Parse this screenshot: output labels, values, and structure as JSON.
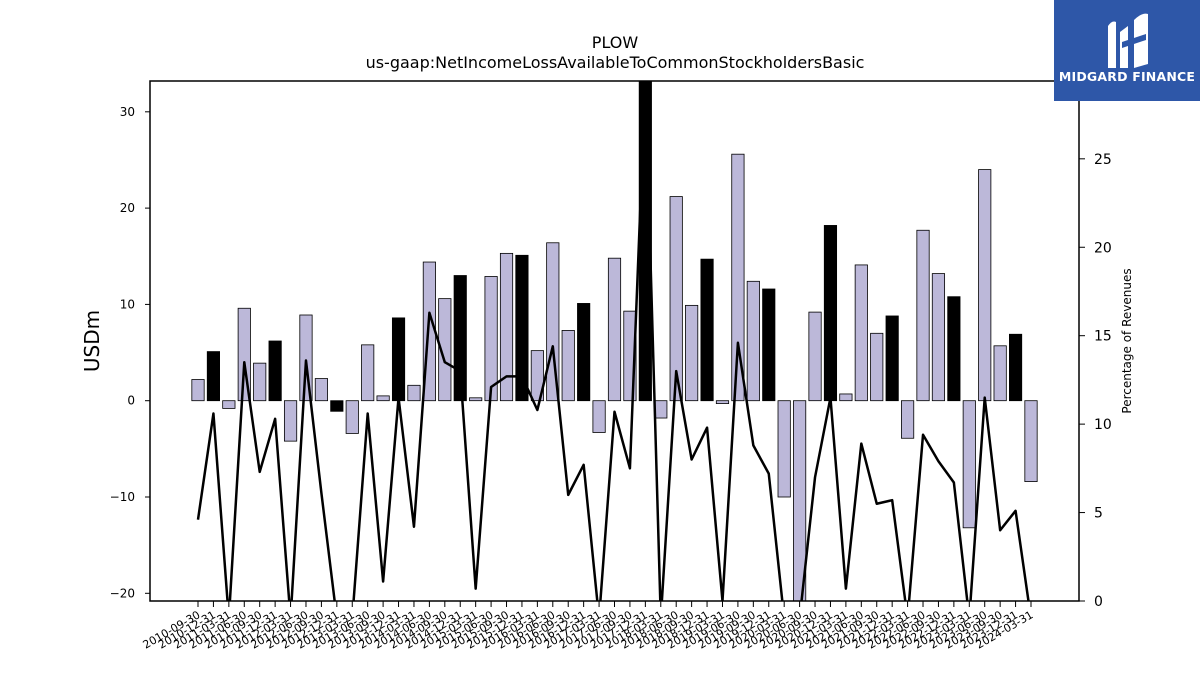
{
  "chart_data": {
    "type": "bar",
    "title": "PLOW",
    "subtitle": "us-gaap:NetIncomeLossAvailableToCommonStockholdersBasic",
    "ylabel": "USDm",
    "y2label": "Percentage of Revenues",
    "ylim": [
      -20.8,
      33.2
    ],
    "y2lim": [
      0,
      29.4
    ],
    "yticks": [
      -20,
      -10,
      0,
      10,
      20,
      30
    ],
    "y2ticks": [
      0,
      5,
      10,
      15,
      20,
      25
    ],
    "categories": [
      "2010-09-30",
      "2010-12-31",
      "2011-03-31",
      "2011-06-30",
      "2011-09-30",
      "2011-12-31",
      "2012-03-31",
      "2012-06-30",
      "2012-09-30",
      "2012-12-31",
      "2013-03-31",
      "2013-06-30",
      "2013-09-30",
      "2013-12-31",
      "2014-03-31",
      "2014-06-30",
      "2014-09-30",
      "2014-12-31",
      "2015-03-31",
      "2015-06-30",
      "2015-09-30",
      "2015-12-31",
      "2016-03-31",
      "2016-06-30",
      "2016-09-30",
      "2016-12-31",
      "2017-03-31",
      "2017-06-30",
      "2017-09-30",
      "2017-12-31",
      "2018-03-31",
      "2018-06-30",
      "2018-09-30",
      "2018-12-31",
      "2019-03-31",
      "2019-06-30",
      "2019-09-30",
      "2019-12-31",
      "2020-03-31",
      "2020-06-30",
      "2020-09-30",
      "2020-12-31",
      "2021-03-31",
      "2021-06-30",
      "2021-09-30",
      "2021-12-31",
      "2022-03-31",
      "2022-06-30",
      "2022-09-30",
      "2022-12-31",
      "2023-03-31",
      "2023-06-30",
      "2023-09-30",
      "2023-12-31",
      "2024-03-31"
    ],
    "tick_labels_shown": [
      "2010-09-30",
      "2010-12-31",
      "2011-03-31",
      "2011-06-30",
      "2011-09-30",
      "2011-12-31",
      "2012-03-31",
      "2012-06-30",
      "2012-09-30",
      "2012-12-31",
      "2013-03-31",
      "2013-06-30",
      "2013-09-30",
      "2013-12-31",
      "2014-03-31",
      "2014-06-30",
      "2014-09-30",
      "2014-12-31",
      "2015-03-31",
      "2015-06-30",
      "2015-09-30",
      "2015-12-31",
      "2016-03-31",
      "2016-06-30",
      "2016-09-30",
      "2016-12-31",
      "2017-03-31",
      "2017-06-30",
      "2017-09-30",
      "2017-12-31",
      "2018-03-31",
      "2018-06-30",
      "2018-09-30",
      "2018-12-31",
      "2019-03-31",
      "2019-06-30",
      "2019-09-30",
      "2019-12-31",
      "2020-03-31",
      "2020-06-30",
      "2020-09-30",
      "2020-12-31",
      "2021-03-31",
      "2021-06-30",
      "2021-09-30",
      "2021-12-31",
      "2022-03-31",
      "2022-06-30",
      "2022-09-30",
      "2022-12-31",
      "2023-03-31",
      "2023-06-30",
      "2023-09-30",
      "2023-12-31",
      "2024-03-31"
    ],
    "series": [
      {
        "kind": "bar",
        "axis": "left",
        "values": [
          2.2,
          5.1,
          -0.8,
          9.6,
          3.9,
          6.2,
          -4.2,
          8.9,
          2.3,
          -1.1,
          -3.4,
          5.8,
          0.5,
          8.6,
          1.6,
          14.4,
          10.6,
          13.0,
          0.3,
          12.9,
          15.3,
          15.1,
          5.2,
          16.4,
          7.3,
          10.1,
          -3.3,
          14.8,
          9.3,
          33.2,
          -1.8,
          21.2,
          9.9,
          14.7,
          -0.3,
          25.6,
          12.4,
          11.6,
          -10.0,
          -20.8,
          9.2,
          18.2,
          0.7,
          14.1,
          7.0,
          8.8,
          -3.9,
          17.7,
          13.2,
          10.8,
          -13.2,
          24.0,
          5.7,
          6.9,
          -8.4
        ],
        "highlight": [
          false,
          true,
          false,
          false,
          false,
          true,
          false,
          false,
          false,
          true,
          false,
          false,
          false,
          true,
          false,
          false,
          false,
          true,
          false,
          false,
          false,
          true,
          false,
          false,
          false,
          true,
          false,
          false,
          false,
          true,
          false,
          false,
          false,
          true,
          false,
          false,
          false,
          true,
          false,
          false,
          false,
          true,
          false,
          false,
          false,
          true,
          false,
          false,
          false,
          true,
          false,
          false,
          false,
          true,
          false
        ]
      },
      {
        "kind": "line",
        "axis": "right",
        "values": [
          4.6,
          10.6,
          -1.0,
          13.5,
          7.3,
          10.3,
          -1.0,
          13.6,
          6.1,
          -1.0,
          -1.0,
          10.6,
          1.1,
          11.5,
          4.2,
          16.3,
          13.5,
          13.0,
          0.7,
          12.1,
          12.7,
          12.7,
          10.8,
          14.4,
          6.0,
          7.7,
          -1.0,
          10.7,
          7.5,
          29.4,
          -1.0,
          13.0,
          8.0,
          9.8,
          0.0,
          14.6,
          8.8,
          7.2,
          -1.0,
          -1.0,
          7.0,
          11.5,
          0.7,
          8.9,
          5.5,
          5.7,
          -1.0,
          9.4,
          7.9,
          6.7,
          -1.0,
          11.5,
          4.0,
          5.1,
          -1.0
        ]
      }
    ],
    "colors": {
      "bar": "#bcb8d9",
      "bar_highlight": "#000000",
      "bar_edge": "#000000",
      "line": "#000000"
    },
    "grid": false,
    "legend": "none"
  },
  "logo": {
    "text": "MIDGARD FINANCE",
    "bg": "#2e57a8"
  }
}
